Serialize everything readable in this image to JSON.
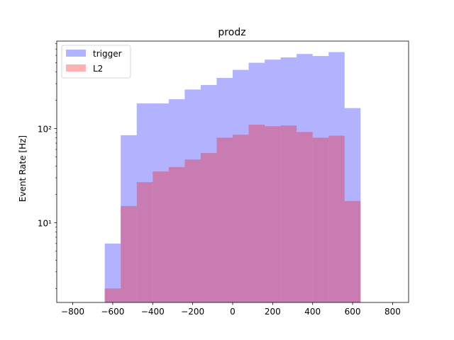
{
  "chart_data": {
    "type": "bar",
    "title": "prodz",
    "xlabel": "",
    "ylabel": "Event Rate [Hz]",
    "xlim": [
      -880,
      880
    ],
    "ylim": [
      1.42,
      850
    ],
    "yscale": "log",
    "grid": false,
    "legend_position": "top-left",
    "x_ticks": [
      -800,
      -600,
      -400,
      -200,
      0,
      200,
      400,
      600,
      800
    ],
    "x_tick_labels": [
      "−800",
      "−600",
      "−400",
      "−200",
      "0",
      "200",
      "400",
      "600",
      "800"
    ],
    "y_ticks": [
      10,
      100
    ],
    "y_tick_labels": [
      "10¹",
      "10²"
    ],
    "bin_edges": [
      -640,
      -560,
      -480,
      -400,
      -320,
      -240,
      -160,
      -80,
      0,
      80,
      160,
      240,
      320,
      400,
      480,
      560,
      640
    ],
    "series": [
      {
        "name": "trigger",
        "color": "#0000ff",
        "alpha": 0.3,
        "values": [
          6,
          85,
          185,
          185,
          205,
          260,
          290,
          345,
          420,
          500,
          540,
          570,
          620,
          590,
          650,
          165
        ]
      },
      {
        "name": "L2",
        "color": "#ff0000",
        "alpha": 0.3,
        "values": [
          2,
          15,
          27,
          35,
          39,
          47,
          55,
          80,
          86,
          110,
          106,
          108,
          92,
          80,
          84,
          17
        ]
      }
    ]
  }
}
